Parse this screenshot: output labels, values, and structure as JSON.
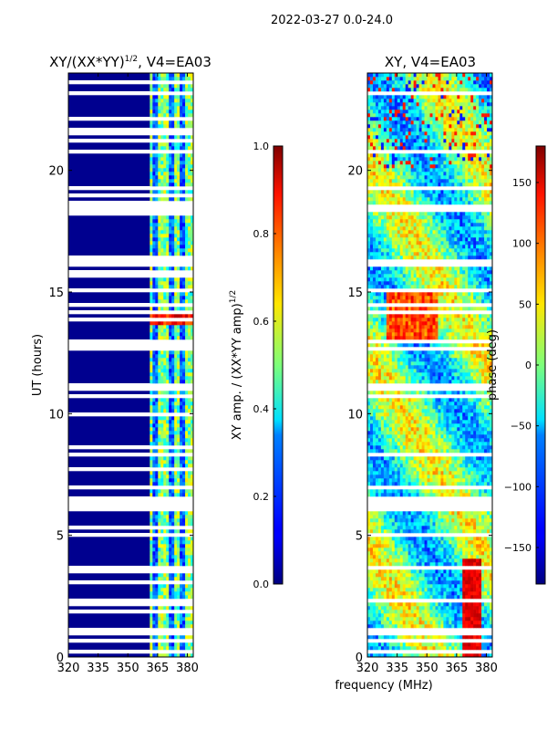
{
  "suptitle": "2022-03-27 0.0-24.0",
  "shared_xlabel": "frequency (MHz)",
  "colors": {
    "background": "#ffffff",
    "frame": "#000000",
    "gap": "#ffffff",
    "amp_floor": "#00008f"
  },
  "colormap": "jet",
  "chart_data": [
    {
      "type": "heatmap",
      "title": "XY/(XX*YY)",
      "title_exponent": "1/2",
      "title_suffix": ", V4=EA03",
      "xlabel": "",
      "ylabel": "UT (hours)",
      "xlim": [
        320,
        383
      ],
      "ylim": [
        0,
        24
      ],
      "xticks": [
        320,
        335,
        350,
        365,
        380
      ],
      "yticks": [
        0,
        5,
        10,
        15,
        20
      ],
      "colorbar": {
        "label": "XY amp. / (XX*YY amp)",
        "label_exponent": "1/2",
        "range": [
          0.0,
          1.0
        ],
        "ticks": [
          "0.0",
          "0.2",
          "0.4",
          "0.6",
          "0.8",
          "1.0"
        ]
      }
    },
    {
      "type": "heatmap",
      "title": "XY, V4=EA03",
      "xlabel": "frequency (MHz)",
      "ylabel": "",
      "xlim": [
        320,
        383
      ],
      "ylim": [
        0,
        24
      ],
      "xticks": [
        320,
        335,
        350,
        365,
        380
      ],
      "yticks": [
        0,
        5,
        10,
        15,
        20
      ],
      "colorbar": {
        "label": "phase (deg)",
        "range": [
          -180,
          180
        ],
        "ticks": [
          -150,
          -100,
          -50,
          0,
          50,
          100,
          150
        ]
      }
    }
  ]
}
